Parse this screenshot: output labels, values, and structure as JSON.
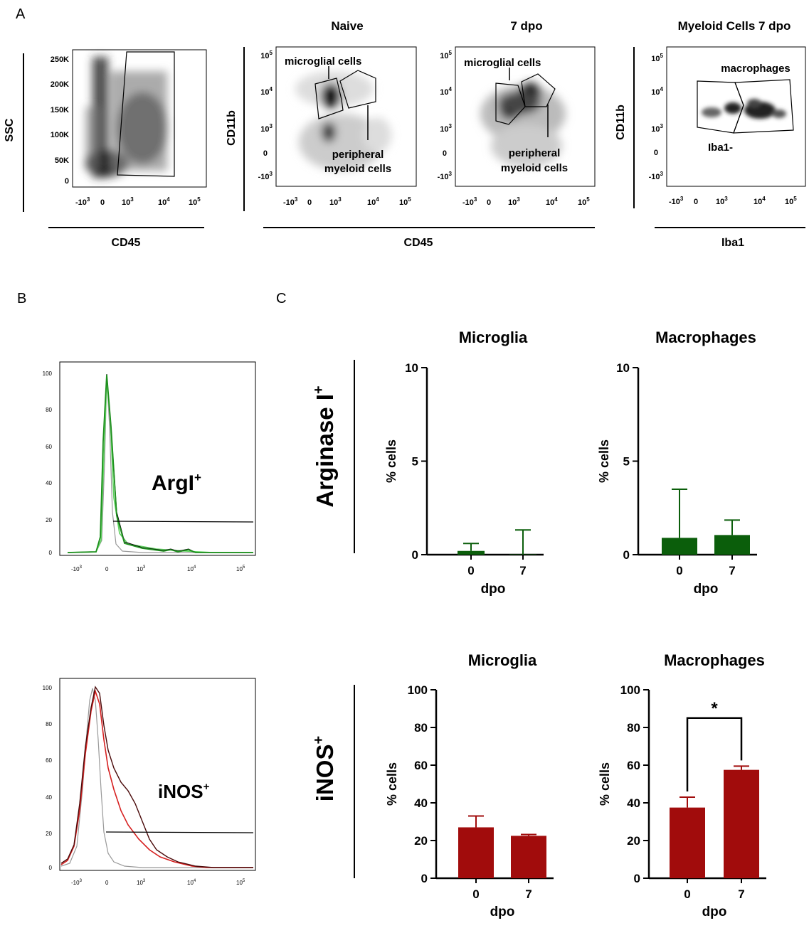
{
  "panel_labels": {
    "a": "A",
    "b": "B",
    "c": "C"
  },
  "panel_a": {
    "scatter1": {
      "y_label": "SSC",
      "x_label": "CD45",
      "y_ticks": [
        "250K",
        "200K",
        "150K",
        "100K",
        "50K",
        "0"
      ],
      "x_ticks": [
        "-10",
        "0",
        "10",
        "10",
        "10"
      ],
      "x_exps": [
        "3",
        "3",
        "4",
        "5"
      ]
    },
    "group_titles": {
      "naive": "Naive",
      "dpo7": "7 dpo",
      "myeloid": "Myeloid Cells 7 dpo"
    },
    "cd11b_label": "CD11b",
    "shared_x_label": "CD45",
    "iba1_x_label": "Iba1",
    "log_y_ticks": [
      "10",
      "10",
      "10",
      "0",
      "-10"
    ],
    "log_y_exps": [
      "5",
      "4",
      "3",
      "3"
    ],
    "log_x_ticks": [
      "-10",
      "0",
      "10",
      "10",
      "10"
    ],
    "log_x_exps": [
      "3",
      "3",
      "4",
      "5"
    ],
    "gate_microglia": "microglial cells",
    "gate_peripheral_1": "peripheral",
    "gate_peripheral_2": "myeloid cells",
    "gate_macrophages": "macrophages",
    "gate_iba1neg": "Iba1-"
  },
  "panel_b": {
    "arg_label": "ArgI",
    "arg_sup": "+",
    "inos_label": "iNOS",
    "inos_sup": "+",
    "y_ticks": [
      "100",
      "80",
      "60",
      "40",
      "20",
      "0"
    ],
    "x_ticks": [
      "-10",
      "0",
      "10",
      "10",
      "10"
    ],
    "x_exps": [
      "3",
      "3",
      "4",
      "5"
    ]
  },
  "panel_c": {
    "row_arg_label": "Arginase I",
    "row_arg_sup": "+",
    "row_inos_label": "iNOS",
    "row_inos_sup": "+",
    "y_label": "% cells",
    "x_label": "dpo",
    "colors": {
      "arginase": "#0b5e0b",
      "inos": "#a10c0c"
    },
    "significance": "*"
  },
  "chart_data": [
    {
      "type": "bar",
      "title": "Microglia",
      "row": "Arginase I+",
      "categories": [
        "0",
        "7"
      ],
      "values": [
        0.2,
        0.02
      ],
      "errors": [
        0.4,
        1.3
      ],
      "xlabel": "dpo",
      "ylabel": "% cells",
      "ylim": [
        0,
        10
      ],
      "yticks": [
        "0",
        "5",
        "10"
      ]
    },
    {
      "type": "bar",
      "title": "Macrophages",
      "row": "Arginase I+",
      "categories": [
        "0",
        "7"
      ],
      "values": [
        0.9,
        1.05
      ],
      "errors": [
        2.6,
        0.8
      ],
      "xlabel": "dpo",
      "ylabel": "% cells",
      "ylim": [
        0,
        10
      ],
      "yticks": [
        "0",
        "5",
        "10"
      ]
    },
    {
      "type": "bar",
      "title": "Microglia",
      "row": "iNOS+",
      "categories": [
        "0",
        "7"
      ],
      "values": [
        27,
        22.5
      ],
      "errors": [
        6,
        0.7
      ],
      "xlabel": "dpo",
      "ylabel": "% cells",
      "ylim": [
        0,
        100
      ],
      "yticks": [
        "0",
        "20",
        "40",
        "60",
        "80",
        "100"
      ]
    },
    {
      "type": "bar",
      "title": "Macrophages",
      "row": "iNOS+",
      "categories": [
        "0",
        "7"
      ],
      "values": [
        37.5,
        57.5
      ],
      "errors": [
        5.5,
        2
      ],
      "xlabel": "dpo",
      "ylabel": "% cells",
      "ylim": [
        0,
        100
      ],
      "yticks": [
        "0",
        "20",
        "40",
        "60",
        "80",
        "100"
      ],
      "significance": "*"
    }
  ]
}
